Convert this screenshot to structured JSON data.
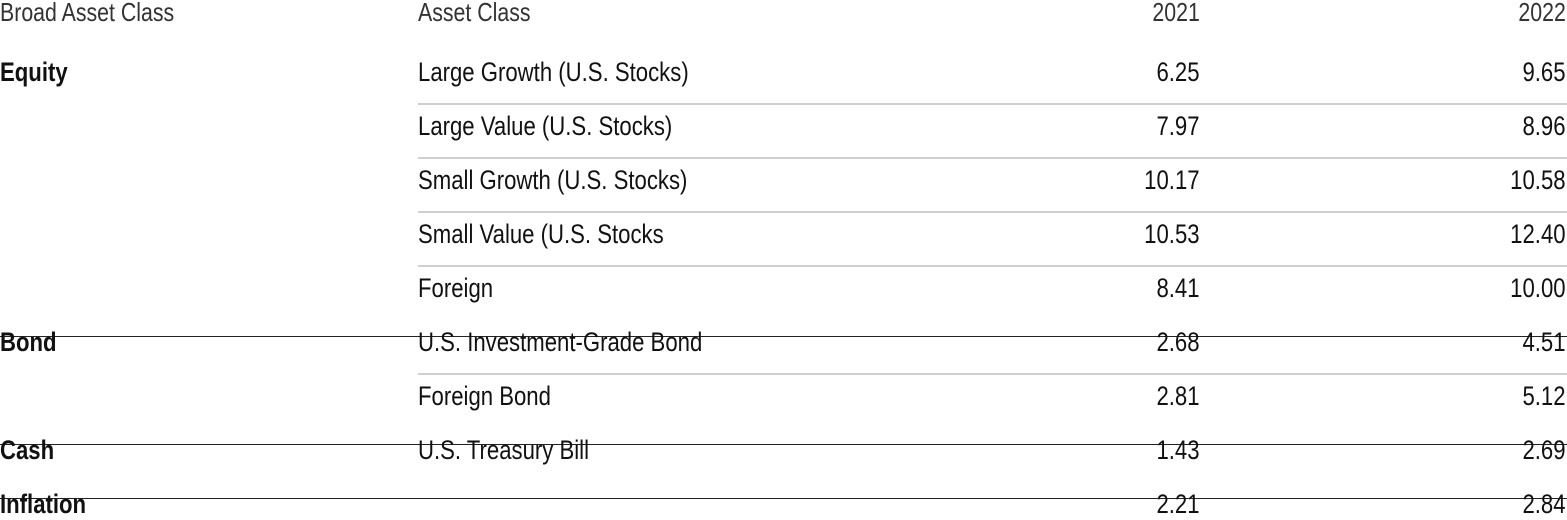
{
  "header": {
    "broad": "Broad Asset Class",
    "asset": "Asset Class",
    "y1": "2021",
    "y2": "2022"
  },
  "groups": [
    {
      "broad": "Equity",
      "rows": [
        {
          "asset": "Large Growth (U.S. Stocks)",
          "v2021": "6.25",
          "v2022": "9.65"
        },
        {
          "asset": "Large Value (U.S. Stocks)",
          "v2021": "7.97",
          "v2022": "8.96"
        },
        {
          "asset": "Small Growth (U.S. Stocks)",
          "v2021": "10.17",
          "v2022": "10.58"
        },
        {
          "asset": "Small Value (U.S. Stocks",
          "v2021": "10.53",
          "v2022": "12.40"
        },
        {
          "asset": "Foreign",
          "v2021": "8.41",
          "v2022": "10.00"
        }
      ]
    },
    {
      "broad": "Bond",
      "rows": [
        {
          "asset": "U.S. Investment-Grade Bond",
          "v2021": "2.68",
          "v2022": "4.51"
        },
        {
          "asset": "Foreign Bond",
          "v2021": "2.81",
          "v2022": "5.12"
        }
      ]
    },
    {
      "broad": "Cash",
      "rows": [
        {
          "asset": "U.S. Treasury Bill",
          "v2021": "1.43",
          "v2022": "2.69"
        }
      ]
    },
    {
      "broad": "Inflation",
      "rows": [
        {
          "asset": "",
          "v2021": "2.21",
          "v2022": "2.84"
        }
      ]
    }
  ]
}
